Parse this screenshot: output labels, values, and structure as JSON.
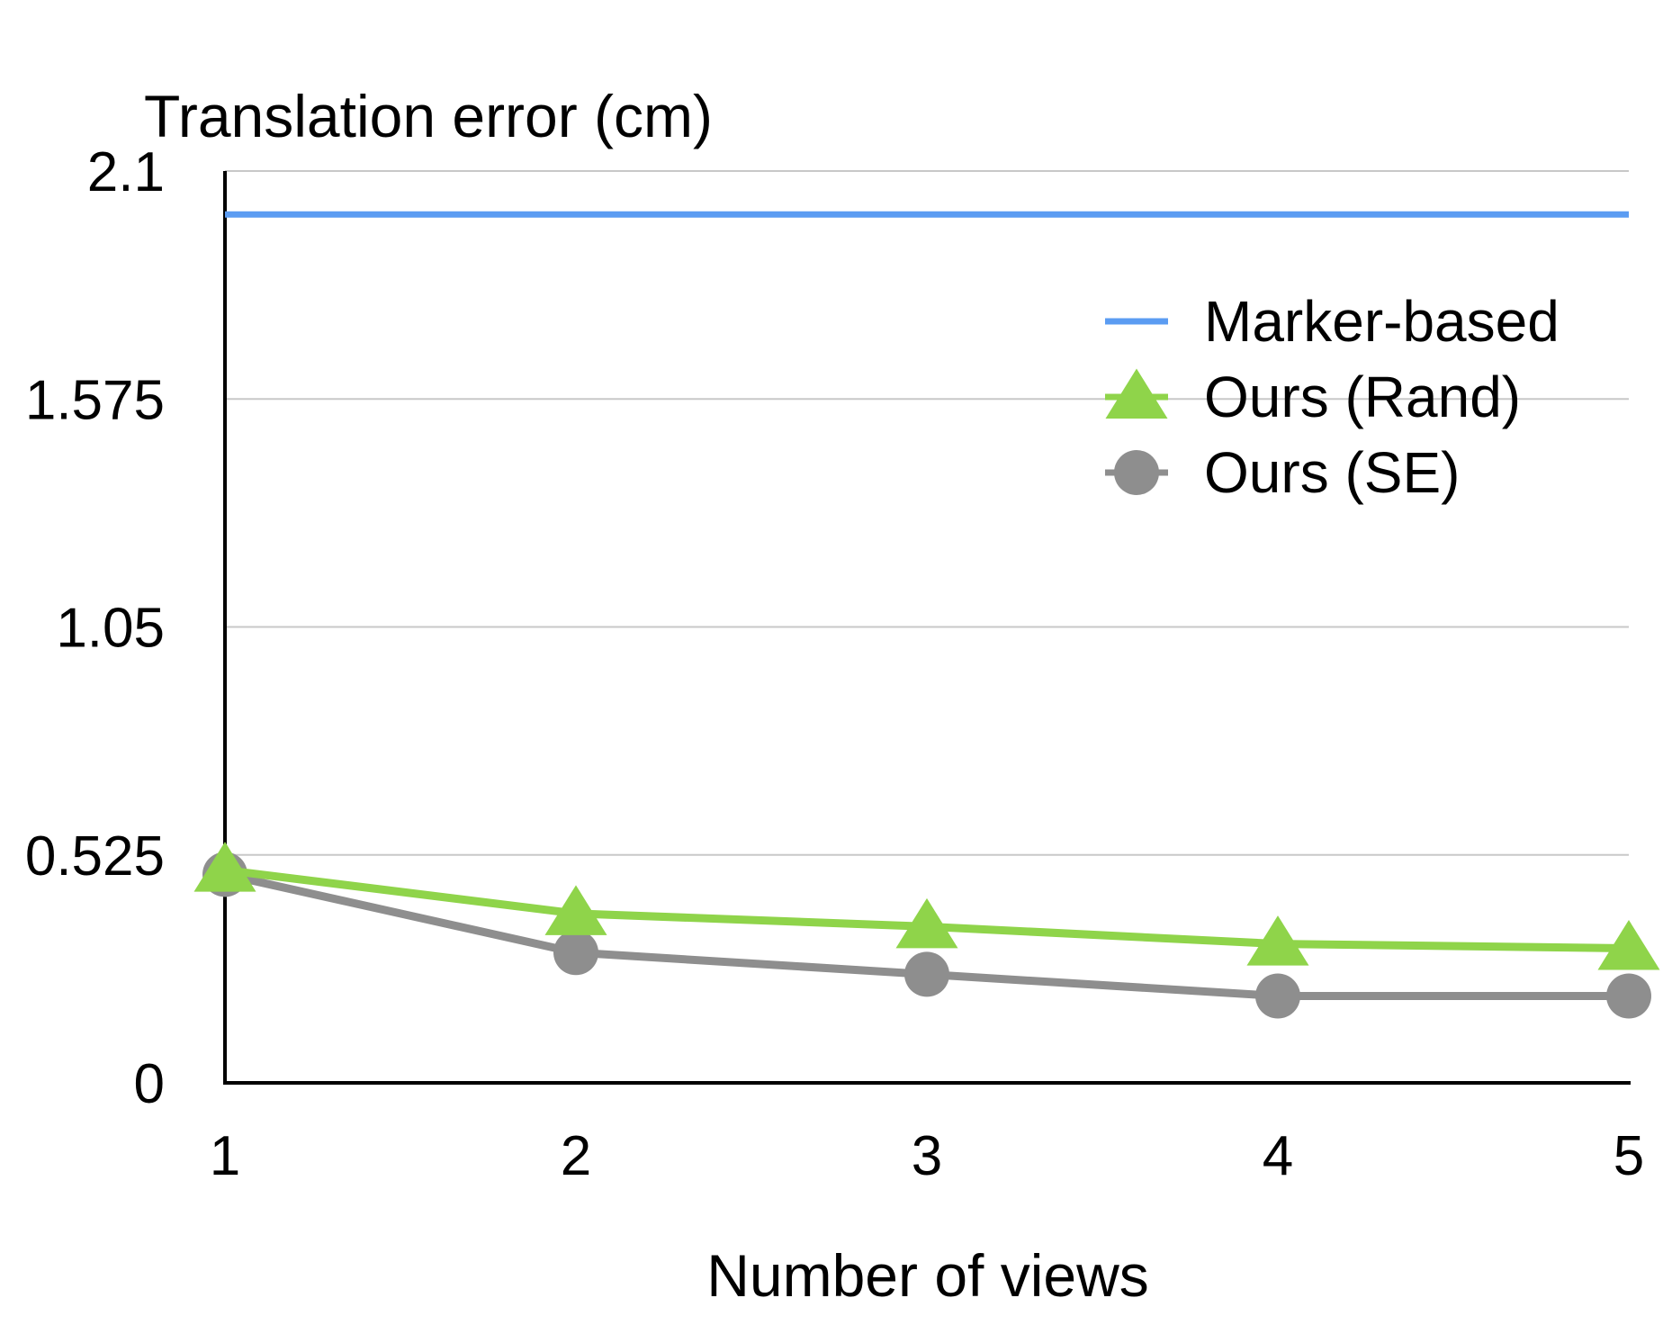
{
  "chart_data": {
    "type": "line",
    "title": "Translation error (cm)",
    "xlabel": "Number of views",
    "ylabel": "",
    "x": [
      1,
      2,
      3,
      4,
      5
    ],
    "xticks": [
      "1",
      "2",
      "3",
      "4",
      "5"
    ],
    "ylim": [
      0,
      2.1
    ],
    "yticks": [
      "0",
      "0.525",
      "1.05",
      "1.575",
      "2.1"
    ],
    "grid": "horizontal",
    "legend_position": "top-right",
    "series": [
      {
        "name": "Marker-based",
        "values": [
          2.0,
          2.0,
          2.0,
          2.0,
          2.0
        ],
        "color": "#5b9cf2",
        "marker": "none"
      },
      {
        "name": "Ours (Rand)",
        "values": [
          0.49,
          0.39,
          0.36,
          0.32,
          0.31
        ],
        "color": "#8fd44a",
        "marker": "triangle"
      },
      {
        "name": "Ours (SE)",
        "values": [
          0.48,
          0.3,
          0.25,
          0.2,
          0.2
        ],
        "color": "#8e8e8e",
        "marker": "circle"
      }
    ]
  }
}
